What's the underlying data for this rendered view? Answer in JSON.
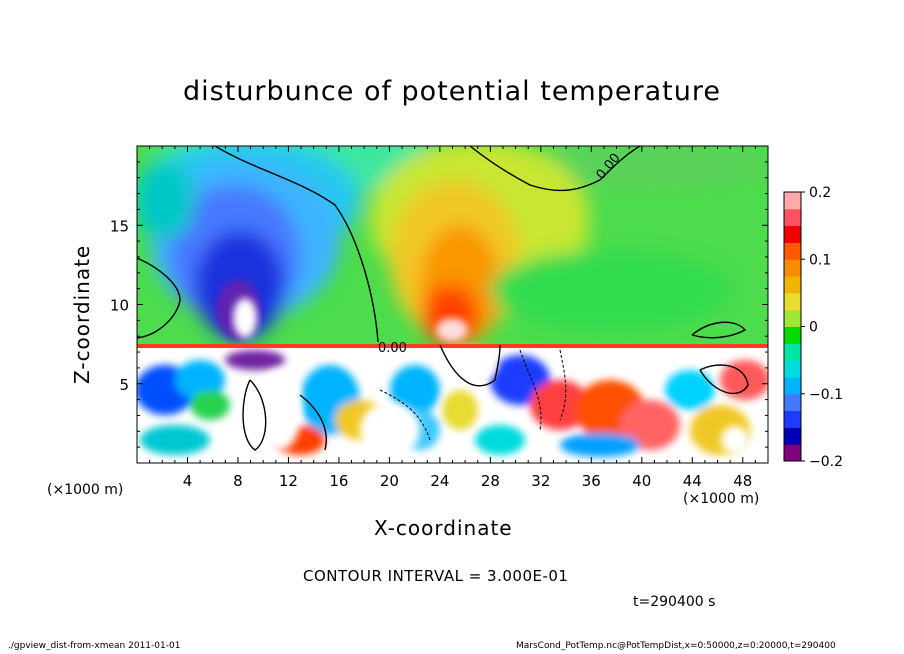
{
  "title": "disturbunce of potential temperature",
  "xlabel": "X-coordinate",
  "ylabel": "Z-coordinate",
  "x_unit_left": "(×1000 m)",
  "x_unit_right": "(×1000 m)",
  "contour_interval": "CONTOUR INTERVAL = 3.000E-01",
  "time_label": "t=290400 s",
  "footer_left": "./gpview_dist-from-xmean  2011-01-01",
  "footer_right": "MarsCond_PotTemp.nc@PotTempDist,x=0:50000,z=0:20000,t=290400",
  "contour_label": "0.00",
  "chart_data": {
    "type": "heatmap",
    "title": "disturbunce of potential temperature",
    "xlabel": "X-coordinate",
    "ylabel": "Z-coordinate",
    "x_ticks": [
      4,
      8,
      12,
      16,
      20,
      24,
      28,
      32,
      36,
      40,
      44,
      48
    ],
    "y_ticks": [
      5,
      10,
      15
    ],
    "xlim": [
      0,
      50
    ],
    "ylim": [
      0,
      20
    ],
    "colorbar_ticks": [
      "0.2",
      "0.1",
      "0",
      "−0.1",
      "−0.2"
    ],
    "colorbar_values": [
      0.2,
      0.1,
      0,
      -0.1,
      -0.2
    ],
    "colorbar_range": [
      -0.2,
      0.2
    ],
    "colors": [
      "#800080",
      "#0000b4",
      "#1e3cff",
      "#4678ff",
      "#00b4ff",
      "#00dcdc",
      "#00e6a0",
      "#00dc00",
      "#a0e632",
      "#e6dc32",
      "#f0b400",
      "#fa8c00",
      "#ff5a00",
      "#f00000",
      "#ff5064",
      "#ffaaaa"
    ],
    "contour_interval": 0.3,
    "time": 290400
  }
}
